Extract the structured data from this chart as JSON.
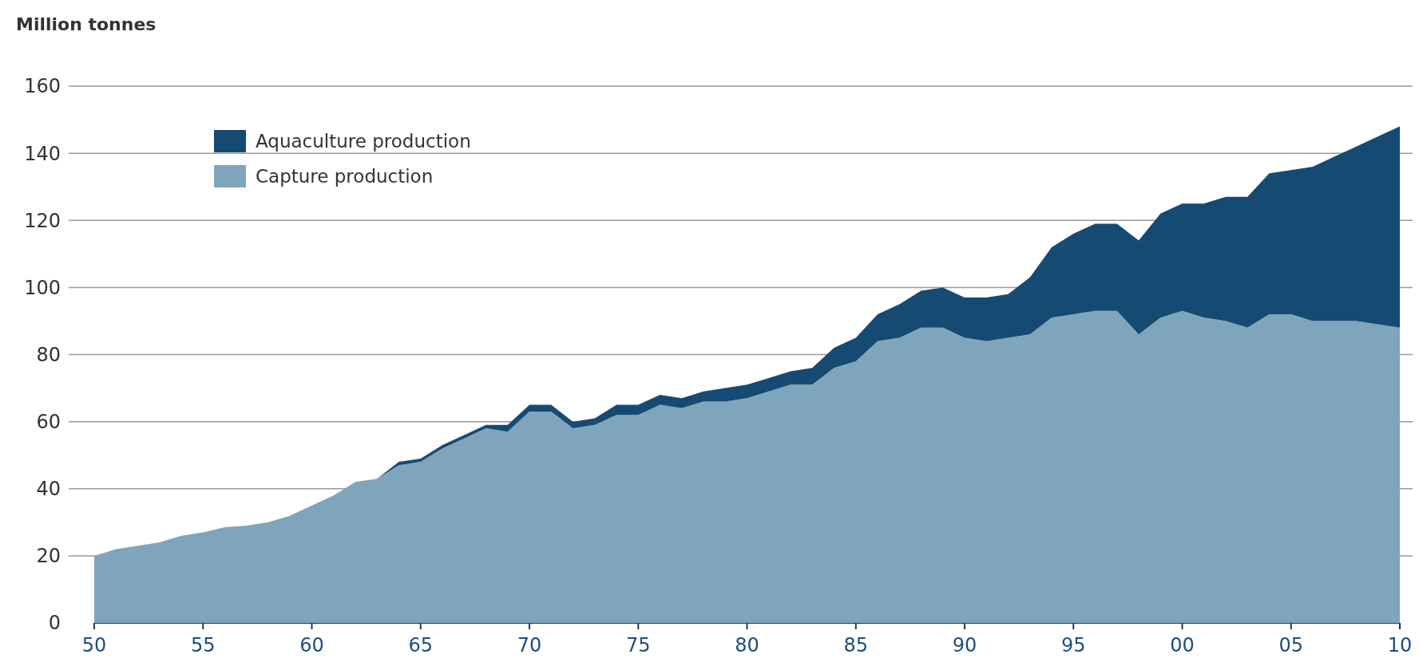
{
  "chart_data": {
    "type": "area",
    "ylabel": "Million tonnes",
    "stacked": true,
    "x": [
      1950,
      1951,
      1952,
      1953,
      1954,
      1955,
      1956,
      1957,
      1958,
      1959,
      1960,
      1961,
      1962,
      1963,
      1964,
      1965,
      1966,
      1967,
      1968,
      1969,
      1970,
      1971,
      1972,
      1973,
      1974,
      1975,
      1976,
      1977,
      1978,
      1979,
      1980,
      1981,
      1982,
      1983,
      1984,
      1985,
      1986,
      1987,
      1988,
      1989,
      1990,
      1991,
      1992,
      1993,
      1994,
      1995,
      1996,
      1997,
      1998,
      1999,
      2000,
      2001,
      2002,
      2003,
      2004,
      2005,
      2006,
      2007,
      2008,
      2009,
      2010
    ],
    "series": [
      {
        "name": "Capture production",
        "color": "#7fa5bc",
        "values": [
          20,
          22,
          23,
          24,
          26,
          27,
          28.5,
          29,
          30,
          32,
          35,
          38,
          42,
          43,
          47,
          48,
          52,
          55,
          58,
          57,
          63,
          63,
          58,
          59,
          62,
          62,
          65,
          64,
          66,
          66,
          67,
          69,
          71,
          71,
          76,
          78,
          84,
          85,
          88,
          88,
          85,
          84,
          85,
          86,
          91,
          92,
          93,
          93,
          86,
          91,
          93,
          91,
          90,
          88,
          92,
          92,
          90,
          90,
          90,
          89,
          88
        ]
      },
      {
        "name": "Aquaculture production",
        "color": "#154b73",
        "values": [
          0,
          0,
          0,
          0,
          0,
          0,
          0,
          0,
          0,
          0,
          0,
          0,
          0,
          0,
          1,
          1,
          1,
          1,
          1,
          2,
          2,
          2,
          2,
          2,
          3,
          3,
          3,
          3,
          3,
          4,
          4,
          4,
          4,
          5,
          6,
          7,
          8,
          10,
          11,
          12,
          12,
          13,
          13,
          17,
          21,
          24,
          26,
          26,
          28,
          31,
          32,
          34,
          37,
          39,
          42,
          43,
          46,
          49,
          52,
          56,
          60
        ]
      }
    ],
    "xlim": [
      1950,
      2010
    ],
    "xticks": [
      {
        "value": 1950,
        "label": "50"
      },
      {
        "value": 1955,
        "label": "55"
      },
      {
        "value": 1960,
        "label": "60"
      },
      {
        "value": 1965,
        "label": "65"
      },
      {
        "value": 1970,
        "label": "70"
      },
      {
        "value": 1975,
        "label": "75"
      },
      {
        "value": 1980,
        "label": "80"
      },
      {
        "value": 1985,
        "label": "85"
      },
      {
        "value": 1990,
        "label": "90"
      },
      {
        "value": 1995,
        "label": "95"
      },
      {
        "value": 2000,
        "label": "00"
      },
      {
        "value": 2005,
        "label": "05"
      },
      {
        "value": 2010,
        "label": "10"
      }
    ],
    "ylim": [
      0,
      160
    ],
    "yticks": [
      0,
      20,
      40,
      60,
      80,
      100,
      120,
      140,
      160
    ],
    "grid": "y",
    "legend": "top left"
  }
}
